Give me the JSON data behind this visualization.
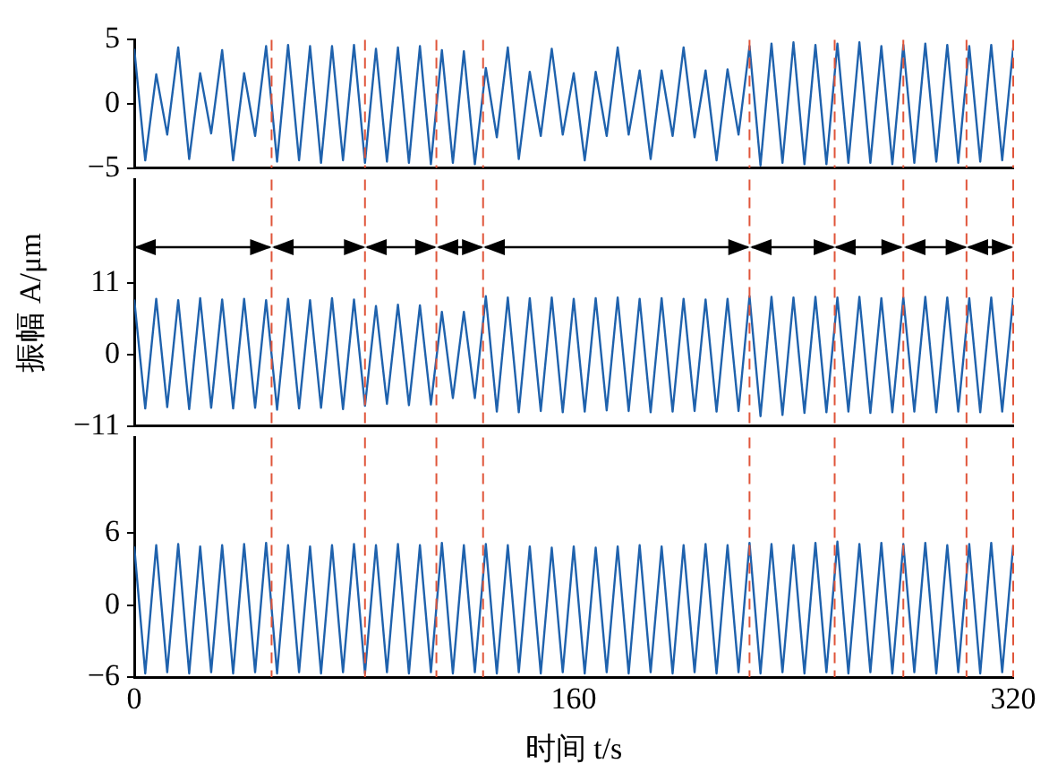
{
  "chart_data": [
    {
      "type": "line",
      "x": [
        0,
        4,
        8,
        12,
        16,
        20,
        24,
        28,
        32,
        36,
        40,
        44,
        48,
        52,
        56,
        60,
        64,
        68,
        72,
        76,
        80,
        84,
        88,
        92,
        96,
        100,
        104,
        108,
        112,
        116,
        120,
        124,
        128,
        132,
        136,
        140,
        144,
        148,
        152,
        156,
        160,
        164,
        168,
        172,
        176,
        180,
        184,
        188,
        192,
        196,
        200,
        204,
        208,
        212,
        216,
        220,
        224,
        228,
        232,
        236,
        240,
        244,
        248,
        252,
        256,
        260,
        264,
        268,
        272,
        276,
        280,
        284,
        288,
        292,
        296,
        300,
        304,
        308,
        312,
        316,
        320
      ],
      "series": [
        {
          "color": "#1f62ad",
          "values": [
            4.3,
            -4.4,
            2.3,
            -2.4,
            4.4,
            -4.3,
            2.4,
            -2.3,
            4.2,
            -4.4,
            2.4,
            -2.5,
            4.5,
            -4.5,
            4.6,
            -4.4,
            4.5,
            -4.6,
            4.5,
            -4.4,
            4.6,
            -4.6,
            4.3,
            -4.5,
            4.4,
            -4.6,
            4.5,
            -4.7,
            4.2,
            -4.6,
            4.1,
            -4.7,
            2.8,
            -2.6,
            4.4,
            -4.3,
            2.5,
            -2.5,
            4.3,
            -2.4,
            2.4,
            -4.4,
            2.5,
            -2.5,
            4.4,
            -2.4,
            2.6,
            -4.3,
            2.6,
            -2.5,
            4.4,
            -2.6,
            2.6,
            -4.4,
            2.7,
            -2.4,
            4.5,
            -4.8,
            4.7,
            -4.6,
            4.8,
            -4.7,
            4.6,
            -4.7,
            4.7,
            -4.6,
            4.8,
            -4.6,
            4.5,
            -4.7,
            4.6,
            -4.6,
            4.7,
            -4.5,
            4.6,
            -4.6,
            4.5,
            -4.5,
            4.6,
            -4.4,
            4.4
          ]
        }
      ],
      "xlim": [
        0,
        320
      ],
      "xticks": [
        0,
        160,
        320
      ],
      "ylim": [
        -5,
        5
      ],
      "yticks": [
        -5,
        0,
        5
      ],
      "tick_labels": "y",
      "grid": false,
      "legend": false,
      "marker": "none",
      "line_style": "solid",
      "ref_lines": [
        {
          "axis": "x",
          "value": 50,
          "color": "#e0553a",
          "line_style": "dashed"
        },
        {
          "axis": "x",
          "value": 84,
          "color": "#e0553a",
          "line_style": "dashed"
        },
        {
          "axis": "x",
          "value": 110,
          "color": "#e0553a",
          "line_style": "dashed"
        },
        {
          "axis": "x",
          "value": 127,
          "color": "#e0553a",
          "line_style": "dashed"
        },
        {
          "axis": "x",
          "value": 224,
          "color": "#e0553a",
          "line_style": "dashed"
        },
        {
          "axis": "x",
          "value": 255,
          "color": "#e0553a",
          "line_style": "dashed"
        },
        {
          "axis": "x",
          "value": 280,
          "color": "#e0553a",
          "line_style": "dashed"
        },
        {
          "axis": "x",
          "value": 303,
          "color": "#e0553a",
          "line_style": "dashed"
        },
        {
          "axis": "x",
          "value": 320,
          "color": "#e0553a",
          "line_style": "dashed"
        }
      ]
    },
    {
      "type": "line",
      "ylabel": "振幅 A/μm",
      "x": [
        0,
        4,
        8,
        12,
        16,
        20,
        24,
        28,
        32,
        36,
        40,
        44,
        48,
        52,
        56,
        60,
        64,
        68,
        72,
        76,
        80,
        84,
        88,
        92,
        96,
        100,
        104,
        108,
        112,
        116,
        120,
        124,
        128,
        132,
        136,
        140,
        144,
        148,
        152,
        156,
        160,
        164,
        168,
        172,
        176,
        180,
        184,
        188,
        192,
        196,
        200,
        204,
        208,
        212,
        216,
        220,
        224,
        228,
        232,
        236,
        240,
        244,
        248,
        252,
        256,
        260,
        264,
        268,
        272,
        276,
        280,
        284,
        288,
        292,
        296,
        300,
        304,
        308,
        312,
        316,
        320
      ],
      "series": [
        {
          "color": "#1f62ad",
          "values": [
            8.5,
            -8.3,
            8.6,
            -8.1,
            8.4,
            -8.4,
            8.7,
            -8.2,
            8.5,
            -8.3,
            8.6,
            -8.2,
            8.4,
            -8.5,
            8.6,
            -8.3,
            8.4,
            -8.2,
            8.7,
            -8.4,
            8.5,
            -7.9,
            7.5,
            -7.6,
            7.7,
            -7.8,
            7.6,
            -7.7,
            6.6,
            -6.7,
            6.6,
            -6.7,
            9.0,
            -8.8,
            8.8,
            -8.9,
            8.7,
            -8.7,
            8.8,
            -8.9,
            8.6,
            -8.8,
            8.7,
            -8.6,
            8.8,
            -8.7,
            8.6,
            -8.9,
            8.7,
            -8.8,
            8.6,
            -8.7,
            8.5,
            -8.8,
            8.6,
            -8.7,
            9.0,
            -9.5,
            8.9,
            -9.3,
            8.8,
            -9.0,
            8.9,
            -8.9,
            8.8,
            -8.8,
            8.9,
            -9.0,
            8.7,
            -8.9,
            8.8,
            -8.8,
            8.9,
            -8.9,
            8.8,
            -8.8,
            8.7,
            -8.9,
            8.8,
            -8.8,
            8.7
          ]
        }
      ],
      "xlim": [
        0,
        320
      ],
      "xticks": [
        0,
        160,
        320
      ],
      "ylim": [
        -11,
        27
      ],
      "yticks": [
        -11,
        0,
        11
      ],
      "tick_labels": "y",
      "grid": false,
      "legend": false,
      "marker": "none",
      "line_style": "solid",
      "ref_lines": [
        {
          "axis": "x",
          "value": 50,
          "color": "#e0553a",
          "line_style": "dashed"
        },
        {
          "axis": "x",
          "value": 84,
          "color": "#e0553a",
          "line_style": "dashed"
        },
        {
          "axis": "x",
          "value": 110,
          "color": "#e0553a",
          "line_style": "dashed"
        },
        {
          "axis": "x",
          "value": 127,
          "color": "#e0553a",
          "line_style": "dashed"
        },
        {
          "axis": "x",
          "value": 224,
          "color": "#e0553a",
          "line_style": "dashed"
        },
        {
          "axis": "x",
          "value": 255,
          "color": "#e0553a",
          "line_style": "dashed"
        },
        {
          "axis": "x",
          "value": 280,
          "color": "#e0553a",
          "line_style": "dashed"
        },
        {
          "axis": "x",
          "value": 303,
          "color": "#e0553a",
          "line_style": "dashed"
        },
        {
          "axis": "x",
          "value": 320,
          "color": "#e0553a",
          "line_style": "dashed"
        }
      ]
    },
    {
      "type": "line",
      "xlabel": "时间 t/s",
      "x": [
        0,
        4,
        8,
        12,
        16,
        20,
        24,
        28,
        32,
        36,
        40,
        44,
        48,
        52,
        56,
        60,
        64,
        68,
        72,
        76,
        80,
        84,
        88,
        92,
        96,
        100,
        104,
        108,
        112,
        116,
        120,
        124,
        128,
        132,
        136,
        140,
        144,
        148,
        152,
        156,
        160,
        164,
        168,
        172,
        176,
        180,
        184,
        188,
        192,
        196,
        200,
        204,
        208,
        212,
        216,
        220,
        224,
        228,
        232,
        236,
        240,
        244,
        248,
        252,
        256,
        260,
        264,
        268,
        272,
        276,
        280,
        284,
        288,
        292,
        296,
        300,
        304,
        308,
        312,
        316,
        320
      ],
      "series": [
        {
          "color": "#1f62ad",
          "values": [
            4.9,
            -5.7,
            5.0,
            -5.6,
            5.1,
            -5.7,
            4.9,
            -5.6,
            5.0,
            -5.7,
            5.1,
            -5.6,
            5.2,
            -5.7,
            5.0,
            -5.6,
            4.9,
            -5.7,
            5.0,
            -5.6,
            5.1,
            -5.7,
            5.0,
            -5.6,
            5.1,
            -5.7,
            5.0,
            -5.6,
            5.2,
            -5.7,
            5.0,
            -5.6,
            5.1,
            -5.7,
            5.0,
            -5.6,
            4.9,
            -5.7,
            4.8,
            -5.6,
            4.9,
            -5.7,
            4.8,
            -5.6,
            4.9,
            -5.7,
            5.0,
            -5.6,
            4.9,
            -5.7,
            5.0,
            -5.6,
            5.1,
            -5.7,
            5.0,
            -5.6,
            5.2,
            -5.7,
            5.1,
            -5.6,
            5.0,
            -5.7,
            5.2,
            -5.6,
            5.3,
            -5.7,
            5.1,
            -5.6,
            5.2,
            -5.7,
            5.1,
            -5.6,
            5.2,
            -5.7,
            5.0,
            -5.6,
            5.1,
            -5.7,
            5.2,
            -5.6,
            5.0
          ]
        }
      ],
      "xlim": [
        0,
        320
      ],
      "xticks": [
        0,
        160,
        320
      ],
      "ylim": [
        -6,
        14
      ],
      "yticks": [
        -6,
        0,
        6
      ],
      "grid": false,
      "legend": false,
      "marker": "none",
      "line_style": "solid",
      "ref_lines": [
        {
          "axis": "x",
          "value": 50,
          "color": "#e0553a",
          "line_style": "dashed"
        },
        {
          "axis": "x",
          "value": 84,
          "color": "#e0553a",
          "line_style": "dashed"
        },
        {
          "axis": "x",
          "value": 110,
          "color": "#e0553a",
          "line_style": "dashed"
        },
        {
          "axis": "x",
          "value": 127,
          "color": "#e0553a",
          "line_style": "dashed"
        },
        {
          "axis": "x",
          "value": 224,
          "color": "#e0553a",
          "line_style": "dashed"
        },
        {
          "axis": "x",
          "value": 255,
          "color": "#e0553a",
          "line_style": "dashed"
        },
        {
          "axis": "x",
          "value": 280,
          "color": "#e0553a",
          "line_style": "dashed"
        },
        {
          "axis": "x",
          "value": 303,
          "color": "#e0553a",
          "line_style": "dashed"
        },
        {
          "axis": "x",
          "value": 320,
          "color": "#e0553a",
          "line_style": "dashed"
        }
      ]
    }
  ]
}
